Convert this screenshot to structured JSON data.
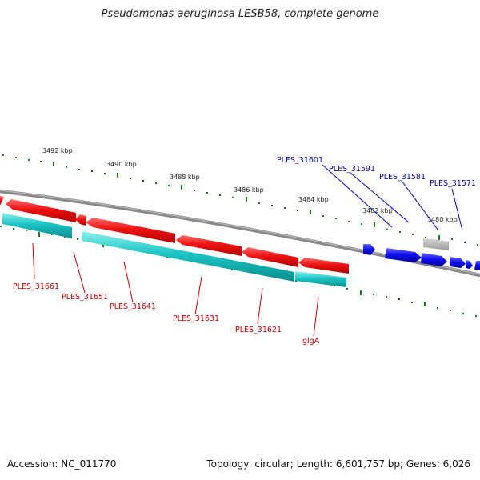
{
  "title": "Pseudomonas aeruginosa LESB58, complete genome",
  "footer": {
    "accession_label": "Accession:",
    "accession": "NC_011770",
    "summary": "Topology: circular; Length: 6,601,757 bp; Genes: 6,026"
  },
  "ticks": [
    "3492 kbp",
    "3490 kbp",
    "3488 kbp",
    "3486 kbp",
    "3484 kbp",
    "3482 kbp",
    "3480 kbp"
  ],
  "genes_forward": [
    "PLES_31571",
    "PLES_31581",
    "PLES_31591",
    "PLES_31601"
  ],
  "genes_reverse": [
    "PLES_31661",
    "PLES_31651",
    "PLES_31641",
    "PLES_31631",
    "PLES_31621",
    "glgA"
  ],
  "colors": {
    "backbone": "#888888",
    "forward_cds": "#1010ee",
    "reverse_cds": "#ee1111",
    "reverse_rna": "#1cc4c4",
    "pseudo": "#b4b4b4",
    "tick": "#1a7a1a"
  }
}
